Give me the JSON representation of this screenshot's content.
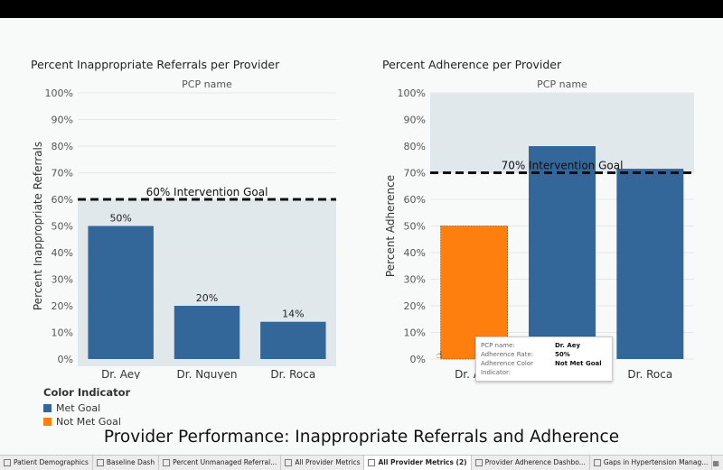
{
  "dashboard_title": "Provider Performance:  Inappropriate Referrals and Adherence",
  "legend": {
    "title": "Color Indicator",
    "items": [
      {
        "label": "Met Goal",
        "color": "#336699"
      },
      {
        "label": "Not Met Goal",
        "color": "#ff7f0e"
      }
    ]
  },
  "tooltip": {
    "rows": [
      {
        "key": "PCP name:",
        "value": "Dr. Aey"
      },
      {
        "key": "Adherence Rate:",
        "value": "50%"
      },
      {
        "key": "Adherence Color Indicator:",
        "value": "Not Met Goal"
      }
    ]
  },
  "tabs": [
    {
      "label": "Patient Demographics",
      "active": false
    },
    {
      "label": "Baseline Dash",
      "active": false
    },
    {
      "label": "Percent Unmanaged Referral...",
      "active": false
    },
    {
      "label": "All Provider Metrics",
      "active": false
    },
    {
      "label": "All Provider Metrics (2)",
      "active": true
    },
    {
      "label": "Provider Adherence Dashbo...",
      "active": false
    },
    {
      "label": "Gaps in Hypertension Manag...",
      "active": false
    }
  ],
  "tab_nav": {
    "first": "⏮",
    "prev": "◀",
    "next": "▶",
    "last": "⏭",
    "grid": "▦"
  },
  "chart_data": [
    {
      "type": "bar",
      "title": "Percent Inappropriate Referrals per Provider",
      "column_header": "PCP name",
      "ylabel": "Percent Inappropriate Referrals",
      "ylim": [
        0,
        1
      ],
      "yticks": [
        "0%",
        "10%",
        "20%",
        "30%",
        "40%",
        "50%",
        "60%",
        "70%",
        "80%",
        "90%",
        "100%"
      ],
      "categories": [
        "Dr. Aey",
        "Dr. Nguyen",
        "Dr. Roca"
      ],
      "values": [
        0.5,
        0.2,
        0.14
      ],
      "data_labels": [
        "50%",
        "20%",
        "14%"
      ],
      "bar_colors": [
        "#336699",
        "#336699",
        "#336699"
      ],
      "goal": {
        "value": 0.6,
        "label": "60% Intervention Goal",
        "shade": "below"
      }
    },
    {
      "type": "bar",
      "title": "Percent Adherence per Provider",
      "column_header": "PCP name",
      "ylabel": "Percent Adherence",
      "ylim": [
        0,
        1
      ],
      "yticks": [
        "0%",
        "10%",
        "20%",
        "30%",
        "40%",
        "50%",
        "60%",
        "70%",
        "80%",
        "90%",
        "100%"
      ],
      "categories": [
        "Dr. Aey",
        "Dr. Nguyen",
        "Dr. Roca"
      ],
      "values": [
        0.5,
        0.8,
        0.715
      ],
      "data_labels": [],
      "bar_colors": [
        "#ff7f0e",
        "#336699",
        "#336699"
      ],
      "goal": {
        "value": 0.7,
        "label": "70% Intervention Goal",
        "shade": "above"
      }
    }
  ]
}
